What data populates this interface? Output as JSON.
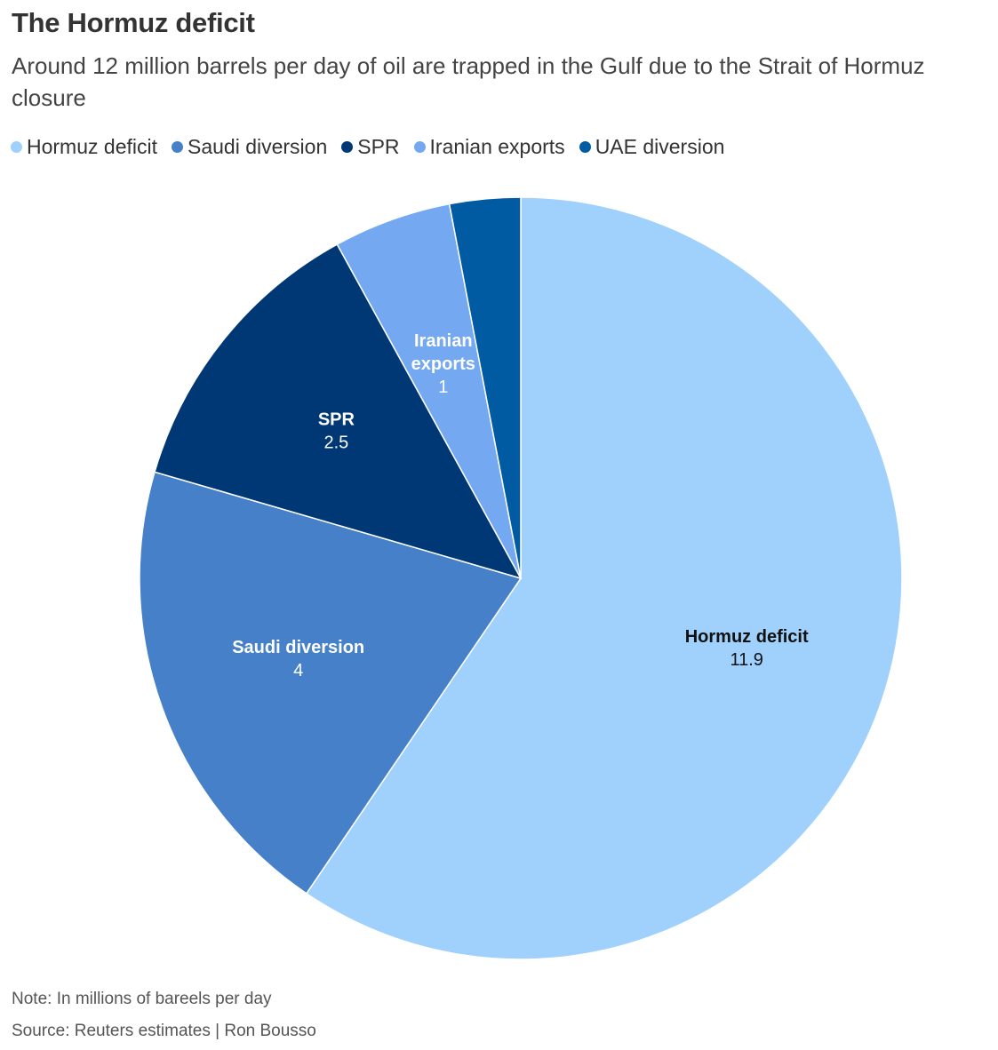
{
  "header": {
    "title": "The Hormuz deficit",
    "subtitle": "Around 12 million barrels per day of oil are trapped in the Gulf due to the Strait of Hormuz closure"
  },
  "chart_data": {
    "type": "pie",
    "title": "The Hormuz deficit",
    "subtitle": "Around 12 million barrels per day of oil are trapped in the Gulf due to the Strait of Hormuz closure",
    "legend_position": "top-left",
    "start_angle": "12 o'clock",
    "direction": "clockwise",
    "slices": [
      {
        "label": "Hormuz deficit",
        "value": 11.9,
        "value_label": "11.9",
        "color": "#9fd1fc",
        "text_color": "#111111",
        "label_lines": [
          "Hormuz deficit"
        ],
        "show_label": true
      },
      {
        "label": "Saudi diversion",
        "value": 4,
        "value_label": "4",
        "color": "#4580c9",
        "text_color": "#ffffff",
        "label_lines": [
          "Saudi diversion"
        ],
        "show_label": true
      },
      {
        "label": "SPR",
        "value": 2.5,
        "value_label": "2.5",
        "color": "#003875",
        "text_color": "#ffffff",
        "label_lines": [
          "SPR"
        ],
        "show_label": true
      },
      {
        "label": "Iranian exports",
        "value": 1,
        "value_label": "1",
        "color": "#74a9f2",
        "text_color": "#ffffff",
        "label_lines": [
          "Iranian",
          "exports"
        ],
        "show_label": true
      },
      {
        "label": "UAE diversion",
        "value": 0.6,
        "value_label": "",
        "color": "#005ba3",
        "text_color": "#ffffff",
        "label_lines": [],
        "show_label": false
      }
    ]
  },
  "footer": {
    "note": "Note: In millions of bareels per day",
    "source": "Source: Reuters estimates | Ron Bousso"
  }
}
